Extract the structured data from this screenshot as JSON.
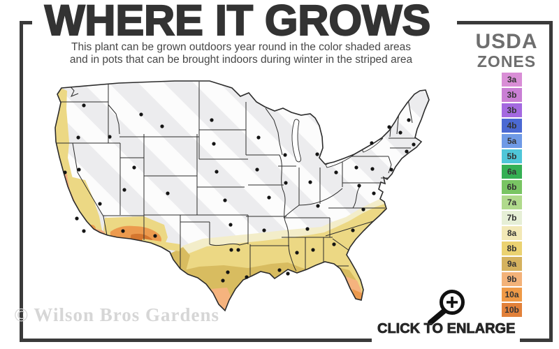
{
  "header": {
    "title": "WHERE IT GROWS",
    "subtitle_line1": "This plant can be grown outdoors year round in the color shaded areas",
    "subtitle_line2": "and in pots that can be brought indoors during winter in the striped area"
  },
  "legend": {
    "heading_line1": "USDA",
    "heading_line2": "ZONES",
    "zones": [
      {
        "label": "3a",
        "color": "#d98ed6"
      },
      {
        "label": "3b",
        "color": "#c97fd4"
      },
      {
        "label": "3b",
        "color": "#a469e0"
      },
      {
        "label": "4b",
        "color": "#4b69d3"
      },
      {
        "label": "5a",
        "color": "#6f9ae6"
      },
      {
        "label": "5b",
        "color": "#4fc6d8"
      },
      {
        "label": "6a",
        "color": "#35b054"
      },
      {
        "label": "6b",
        "color": "#79c563"
      },
      {
        "label": "7a",
        "color": "#b0da8c"
      },
      {
        "label": "7b",
        "color": "#e6efd6"
      },
      {
        "label": "8a",
        "color": "#f2e8b6"
      },
      {
        "label": "8b",
        "color": "#ebd271"
      },
      {
        "label": "9a",
        "color": "#d5b25e"
      },
      {
        "label": "9b",
        "color": "#f3b279"
      },
      {
        "label": "10a",
        "color": "#ef9a47"
      },
      {
        "label": "10b",
        "color": "#e2813a"
      }
    ]
  },
  "footer": {
    "watermark": "© Wilson Bros Gardens",
    "click_to_enlarge": "CLICK TO ENLARGE"
  },
  "palette": {
    "frame": "#3a3a3a",
    "map_gray": "#ececee",
    "state_border": "#2b2b2b",
    "dot": "#141414",
    "zone_pale": "#f3edc9",
    "zone_yellow": "#ecd884",
    "zone_gold": "#d8bc60",
    "zone_peach": "#f5b37e",
    "zone_orange": "#ec9a4e",
    "zone_orange_dark": "#d4762f",
    "zone_salmon": "#f3ab7e"
  }
}
